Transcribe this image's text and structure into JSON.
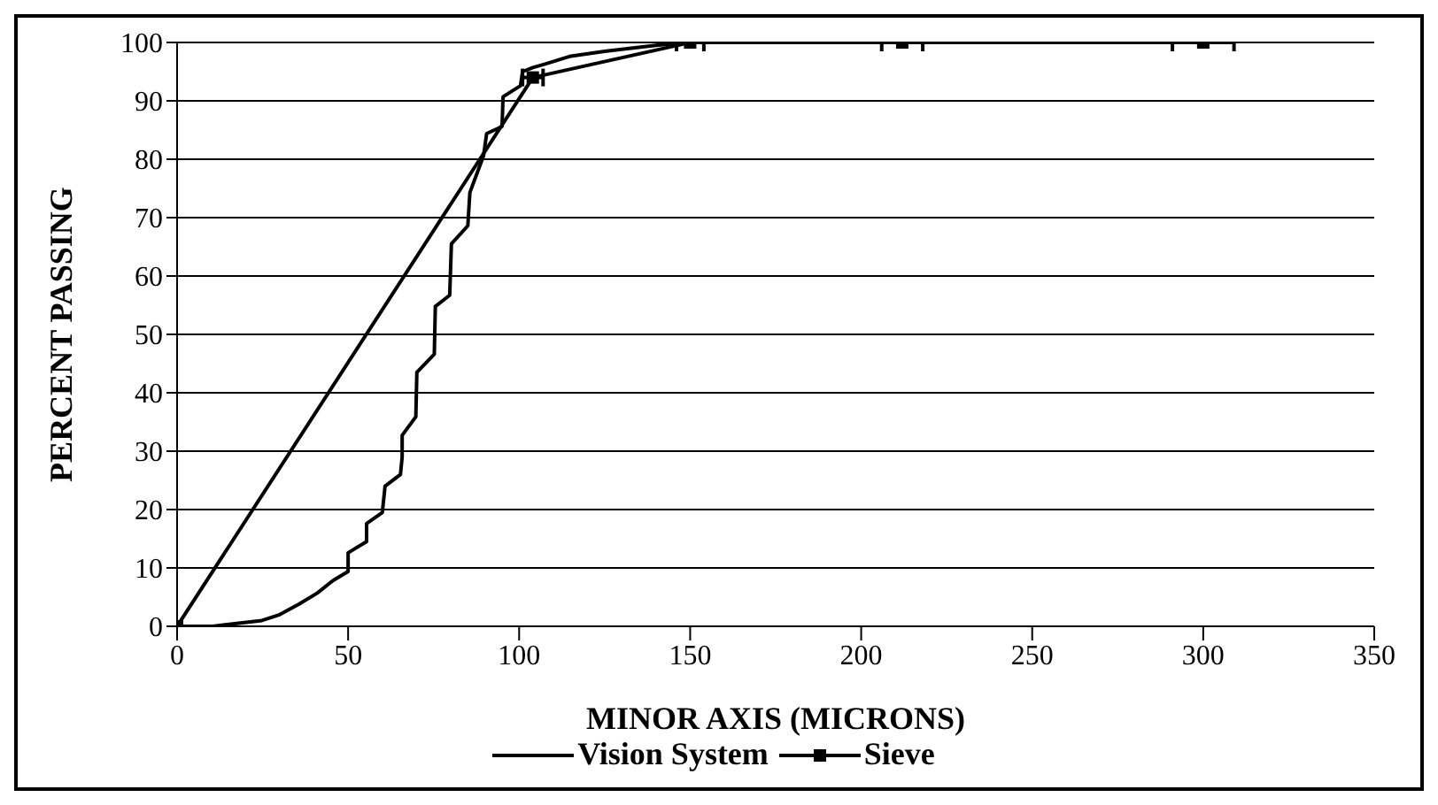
{
  "chart_data": {
    "type": "line",
    "xlabel": "MINOR AXIS (MICRONS)",
    "ylabel": "PERCENT PASSING",
    "xlim": [
      0,
      350
    ],
    "xticks": [
      0,
      50,
      100,
      150,
      200,
      250,
      300,
      350
    ],
    "ylim": [
      0,
      100
    ],
    "yticks": [
      0,
      10,
      20,
      30,
      40,
      50,
      60,
      70,
      80,
      90,
      100
    ],
    "grid": "y",
    "legend": "bottom",
    "line_style": "solid",
    "series": [
      {
        "name": "Vision System",
        "color": "#000000",
        "marker": "none",
        "x": [
          0,
          10.4,
          24.8,
          30,
          35.6,
          41,
          45.5,
          50,
          50,
          55.4,
          55.4,
          60,
          60.8,
          65.3,
          65.8,
          65.8,
          69.8,
          70.1,
          75.2,
          75.5,
          79.7,
          80.2,
          85,
          85.6,
          89.6,
          90.5,
          95,
          95.3,
          100.4,
          101,
          104,
          107.6,
          114.7,
          125,
          140,
          150
        ],
        "values": [
          0,
          0,
          1,
          2,
          3.8,
          5.7,
          7.8,
          9.4,
          12.6,
          14.5,
          17.6,
          19.5,
          24,
          26,
          29,
          32.7,
          35.9,
          43.5,
          46.6,
          54.8,
          56.7,
          65.5,
          68.6,
          74.3,
          80.6,
          84.4,
          85.6,
          90.7,
          92.6,
          95,
          95.7,
          96.3,
          97.6,
          98.5,
          99.5,
          100
        ]
      },
      {
        "name": "Sieve",
        "color": "#000000",
        "marker": "square",
        "x": [
          0,
          104,
          150,
          212,
          300
        ],
        "values": [
          0,
          94,
          100,
          100,
          100
        ],
        "xerrors": [
          null,
          3,
          4,
          6,
          9
        ]
      }
    ]
  }
}
